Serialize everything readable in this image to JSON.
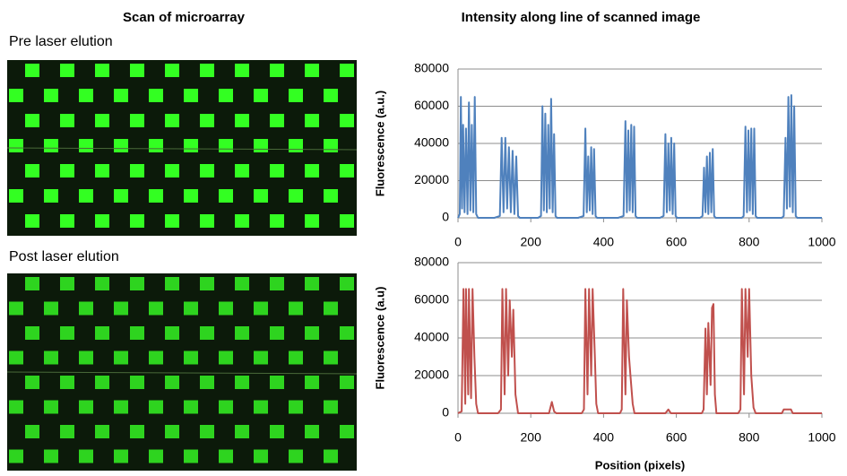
{
  "scan_panel": {
    "title": "Scan of microarray",
    "pre_label": "Pre laser elution",
    "post_label": "Post laser elution"
  },
  "chart_data": [
    {
      "type": "line",
      "title": "Intensity along line of scanned image",
      "y_label": "Fluorescence (a.u.)",
      "xlim": [
        0,
        1000
      ],
      "xticks": [
        0,
        200,
        400,
        600,
        800,
        1000
      ],
      "ylim": [
        0,
        80000
      ],
      "yticks": [
        0,
        20000,
        40000,
        60000,
        80000
      ],
      "grid": true,
      "x": [
        0,
        5,
        8,
        11,
        14,
        18,
        22,
        26,
        30,
        34,
        38,
        42,
        46,
        50,
        55,
        100,
        115,
        120,
        125,
        130,
        135,
        140,
        145,
        150,
        155,
        160,
        165,
        170,
        220,
        228,
        232,
        236,
        240,
        244,
        248,
        252,
        256,
        260,
        264,
        268,
        272,
        330,
        345,
        350,
        354,
        358,
        362,
        366,
        370,
        374,
        378,
        382,
        440,
        455,
        460,
        464,
        468,
        472,
        476,
        480,
        484,
        488,
        492,
        555,
        565,
        570,
        574,
        578,
        582,
        586,
        590,
        594,
        598,
        602,
        665,
        672,
        676,
        680,
        684,
        688,
        692,
        696,
        700,
        704,
        708,
        780,
        785,
        790,
        794,
        798,
        802,
        806,
        810,
        814,
        818,
        822,
        890,
        895,
        900,
        904,
        908,
        912,
        916,
        920,
        924,
        928,
        932,
        1000
      ],
      "series": [
        {
          "color": "#4f81bd",
          "values": [
            0,
            2000,
            65000,
            5000,
            50000,
            3000,
            48000,
            2000,
            62000,
            4000,
            50000,
            3000,
            65000,
            2000,
            0,
            0,
            1000,
            43000,
            3000,
            43000,
            5000,
            38000,
            3000,
            36000,
            2000,
            33000,
            1000,
            0,
            0,
            1000,
            60000,
            4000,
            56000,
            3000,
            50000,
            5000,
            64000,
            3000,
            45000,
            1000,
            0,
            0,
            1000,
            48000,
            3000,
            33000,
            4000,
            38000,
            2000,
            37000,
            1000,
            0,
            0,
            1000,
            52000,
            3000,
            47000,
            4000,
            50000,
            3000,
            49000,
            1000,
            0,
            0,
            1000,
            45000,
            3000,
            40000,
            4000,
            43000,
            2000,
            40000,
            1000,
            0,
            0,
            1000,
            27000,
            3000,
            33000,
            2000,
            35000,
            3000,
            37000,
            1000,
            0,
            0,
            1000,
            49000,
            3000,
            47000,
            4000,
            48000,
            2000,
            48000,
            1000,
            0,
            0,
            1000,
            43000,
            5000,
            65000,
            6000,
            66000,
            3000,
            60000,
            1000,
            0,
            0
          ]
        }
      ]
    },
    {
      "type": "line",
      "y_label": "Fluorescence (a.u)",
      "x_label": "Position (pixels)",
      "xlim": [
        0,
        1000
      ],
      "xticks": [
        0,
        200,
        400,
        600,
        800,
        1000
      ],
      "ylim": [
        0,
        80000
      ],
      "yticks": [
        0,
        20000,
        40000,
        60000,
        80000
      ],
      "grid": true,
      "x": [
        0,
        10,
        15,
        20,
        22,
        28,
        30,
        36,
        40,
        45,
        50,
        55,
        110,
        118,
        122,
        128,
        132,
        138,
        142,
        148,
        152,
        158,
        165,
        250,
        258,
        264,
        270,
        340,
        346,
        350,
        356,
        360,
        366,
        370,
        376,
        380,
        385,
        445,
        450,
        454,
        460,
        464,
        470,
        474,
        480,
        485,
        570,
        578,
        585,
        670,
        675,
        680,
        684,
        688,
        694,
        698,
        702,
        706,
        710,
        770,
        776,
        780,
        786,
        790,
        796,
        800,
        806,
        812,
        818,
        890,
        895,
        915,
        920,
        1000
      ],
      "series": [
        {
          "color": "#c0504d",
          "values": [
            0,
            1000,
            66000,
            5000,
            66000,
            10000,
            66000,
            8000,
            66000,
            30000,
            5000,
            0,
            0,
            2000,
            66000,
            10000,
            66000,
            20000,
            60000,
            30000,
            55000,
            10000,
            0,
            0,
            6000,
            1000,
            0,
            0,
            2000,
            66000,
            10000,
            66000,
            20000,
            66000,
            30000,
            5000,
            0,
            0,
            2000,
            66000,
            10000,
            60000,
            30000,
            20000,
            5000,
            0,
            0,
            2000,
            0,
            0,
            2000,
            45000,
            10000,
            48000,
            15000,
            56000,
            58000,
            10000,
            0,
            0,
            2000,
            66000,
            10000,
            66000,
            30000,
            66000,
            20000,
            3000,
            0,
            0,
            2000,
            2000,
            0,
            0
          ]
        }
      ]
    }
  ]
}
